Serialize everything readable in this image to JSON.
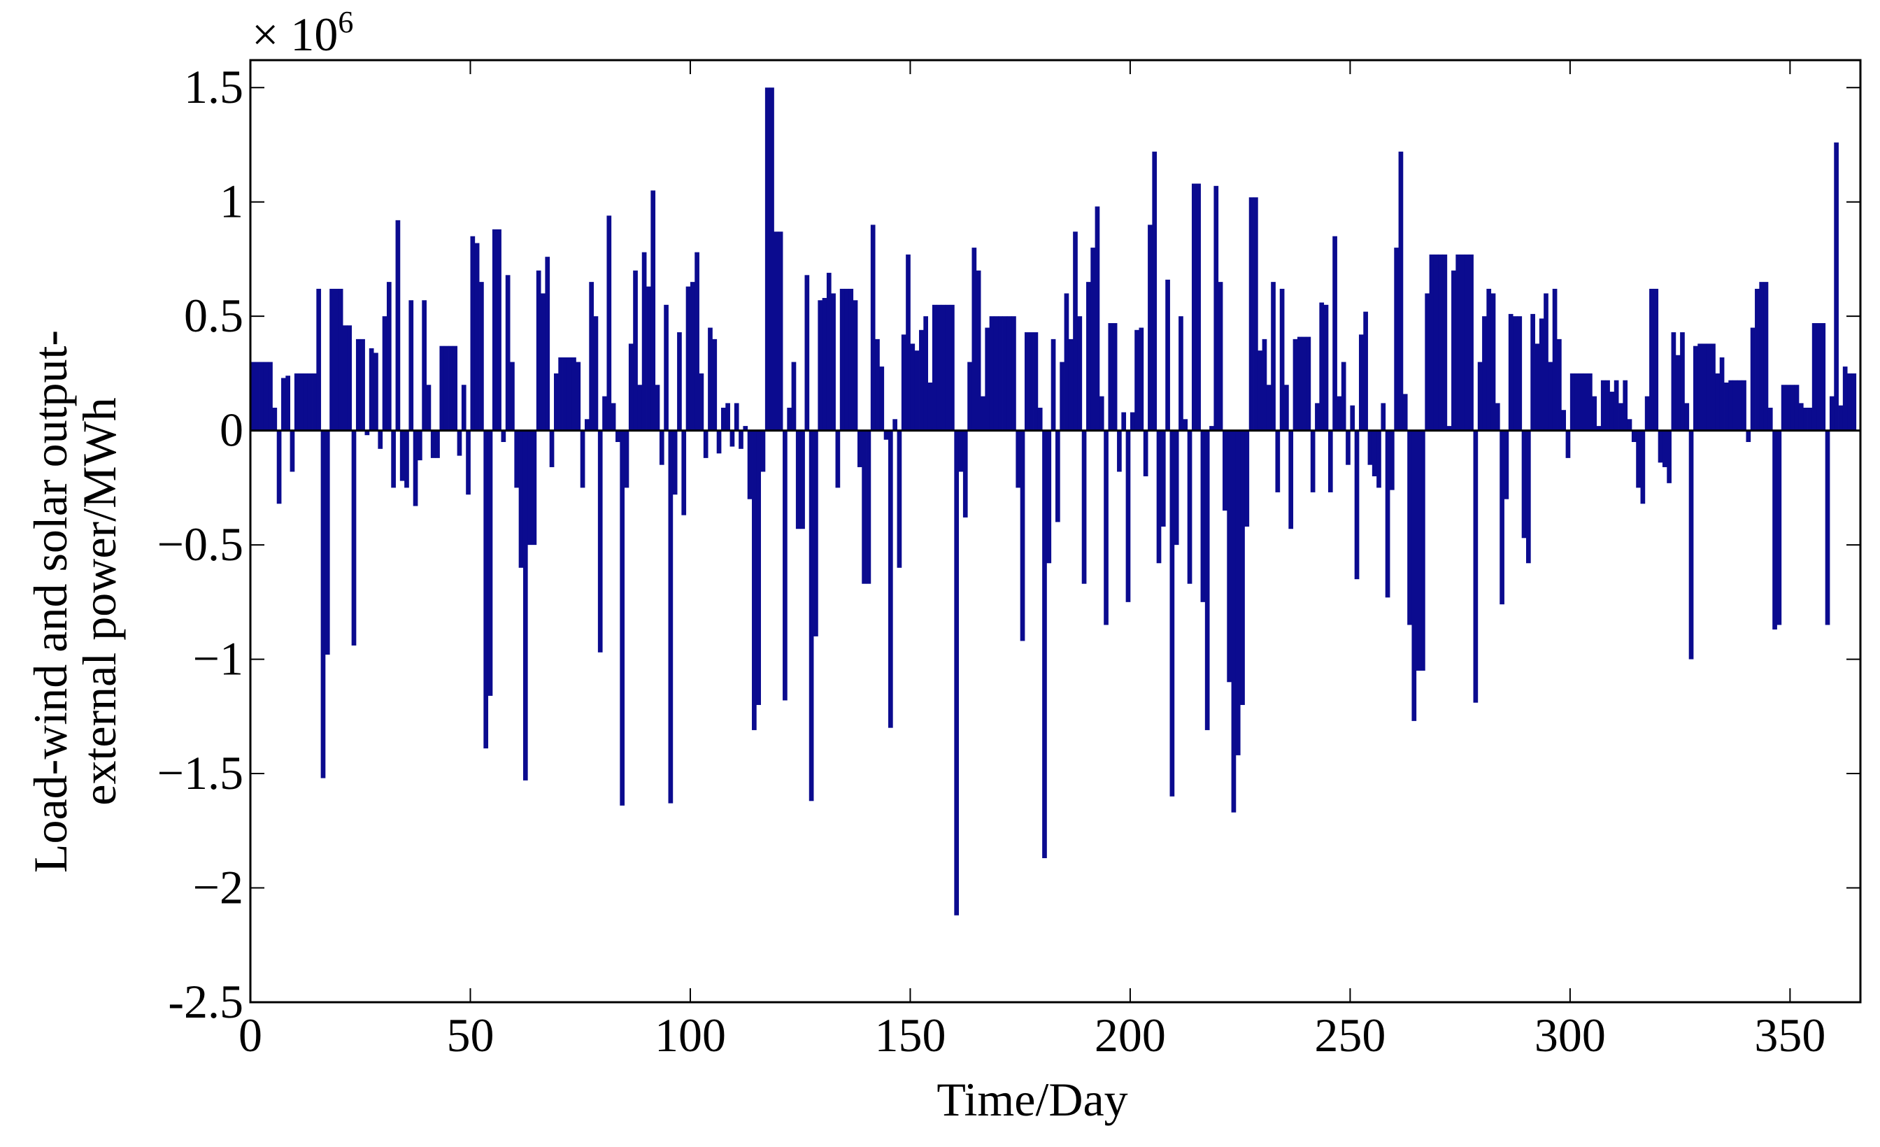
{
  "chart_data": {
    "type": "bar",
    "y_label_lines": [
      "Load-wind and solar output-",
      "external power/MWh"
    ],
    "x_label": "Time/Day",
    "y_multiplier": {
      "base": "× 10",
      "exponent": "6"
    },
    "color": "#0b0b8f",
    "xlim": [
      0,
      366
    ],
    "xticks": [
      0,
      50,
      100,
      150,
      200,
      250,
      300,
      350
    ],
    "ylim": [
      -2.5,
      1.62
    ],
    "yticks": [
      {
        "value": -2.5,
        "label": "-2.5"
      },
      {
        "value": -2,
        "label": "−2"
      },
      {
        "value": -1.5,
        "label": "−1.5"
      },
      {
        "value": -1,
        "label": "−1"
      },
      {
        "value": -0.5,
        "label": "−0.5"
      },
      0,
      0.5,
      1,
      1.5
    ],
    "x": [
      1,
      2,
      3,
      4,
      5,
      6,
      7,
      8,
      9,
      10,
      11,
      12,
      13,
      14,
      15,
      16,
      17,
      18,
      19,
      20,
      21,
      22,
      23,
      24,
      25,
      26,
      27,
      28,
      29,
      30,
      31,
      32,
      33,
      34,
      35,
      36,
      37,
      38,
      39,
      40,
      41,
      42,
      43,
      44,
      45,
      46,
      47,
      48,
      49,
      50,
      51,
      52,
      53,
      54,
      55,
      56,
      57,
      58,
      59,
      60,
      61,
      62,
      63,
      64,
      65,
      66,
      67,
      68,
      69,
      70,
      71,
      72,
      73,
      74,
      75,
      76,
      77,
      78,
      79,
      80,
      81,
      82,
      83,
      84,
      85,
      86,
      87,
      88,
      89,
      90,
      91,
      92,
      93,
      94,
      95,
      96,
      97,
      98,
      99,
      100,
      101,
      102,
      103,
      104,
      105,
      106,
      107,
      108,
      109,
      110,
      111,
      112,
      113,
      114,
      115,
      116,
      117,
      118,
      119,
      120,
      121,
      122,
      123,
      124,
      125,
      126,
      127,
      128,
      129,
      130,
      131,
      132,
      133,
      134,
      135,
      136,
      137,
      138,
      139,
      140,
      141,
      142,
      143,
      144,
      145,
      146,
      147,
      148,
      149,
      150,
      151,
      152,
      153,
      154,
      155,
      156,
      157,
      158,
      159,
      160,
      161,
      162,
      163,
      164,
      165,
      166,
      167,
      168,
      169,
      170,
      171,
      172,
      173,
      174,
      175,
      176,
      177,
      178,
      179,
      180,
      181,
      182,
      183,
      184,
      185,
      186,
      187,
      188,
      189,
      190,
      191,
      192,
      193,
      194,
      195,
      196,
      197,
      198,
      199,
      200,
      201,
      202,
      203,
      204,
      205,
      206,
      207,
      208,
      209,
      210,
      211,
      212,
      213,
      214,
      215,
      216,
      217,
      218,
      219,
      220,
      221,
      222,
      223,
      224,
      225,
      226,
      227,
      228,
      229,
      230,
      231,
      232,
      233,
      234,
      235,
      236,
      237,
      238,
      239,
      240,
      241,
      242,
      243,
      244,
      245,
      246,
      247,
      248,
      249,
      250,
      251,
      252,
      253,
      254,
      255,
      256,
      257,
      258,
      259,
      260,
      261,
      262,
      263,
      264,
      265,
      266,
      267,
      268,
      269,
      270,
      271,
      272,
      273,
      274,
      275,
      276,
      277,
      278,
      279,
      280,
      281,
      282,
      283,
      284,
      285,
      286,
      287,
      288,
      289,
      290,
      291,
      292,
      293,
      294,
      295,
      296,
      297,
      298,
      299,
      300,
      301,
      302,
      303,
      304,
      305,
      306,
      307,
      308,
      309,
      310,
      311,
      312,
      313,
      314,
      315,
      316,
      317,
      318,
      319,
      320,
      321,
      322,
      323,
      324,
      325,
      326,
      327,
      328,
      329,
      330,
      331,
      332,
      333,
      334,
      335,
      336,
      337,
      338,
      339,
      340,
      341,
      342,
      343,
      344,
      345,
      346,
      347,
      348,
      349,
      350,
      351,
      352,
      353,
      354,
      355,
      356,
      357,
      358,
      359,
      360,
      361,
      362,
      363,
      364,
      365
    ],
    "values": [
      0.3,
      0.3,
      0.3,
      0.3,
      0.3,
      0.1,
      -0.32,
      0.23,
      0.24,
      -0.18,
      0.25,
      0.25,
      0.25,
      0.25,
      0.25,
      0.62,
      -1.52,
      -0.98,
      0.62,
      0.62,
      0.62,
      0.46,
      0.46,
      -0.94,
      0.4,
      0.4,
      -0.02,
      0.36,
      0.34,
      -0.08,
      0.5,
      0.65,
      -0.25,
      0.92,
      -0.22,
      -0.25,
      0.57,
      -0.33,
      -0.13,
      0.57,
      0.2,
      -0.12,
      -0.12,
      0.37,
      0.37,
      0.37,
      0.37,
      -0.11,
      0.2,
      -0.28,
      0.85,
      0.82,
      0.65,
      -1.39,
      -1.16,
      0.88,
      0.88,
      -0.05,
      0.68,
      0.3,
      -0.25,
      -0.6,
      -1.53,
      -0.5,
      -0.5,
      0.7,
      0.6,
      0.76,
      -0.16,
      0.25,
      0.32,
      0.32,
      0.32,
      0.32,
      0.3,
      -0.25,
      0.05,
      0.65,
      0.5,
      -0.97,
      0.15,
      0.94,
      0.12,
      -0.05,
      -1.64,
      -0.25,
      0.38,
      0.7,
      0.2,
      0.78,
      0.63,
      1.05,
      0.2,
      -0.15,
      0.55,
      -1.63,
      -0.28,
      0.43,
      -0.37,
      0.63,
      0.65,
      0.78,
      0.25,
      -0.12,
      0.45,
      0.4,
      -0.1,
      0.1,
      0.12,
      -0.07,
      0.12,
      -0.08,
      0.02,
      -0.3,
      -1.31,
      -1.2,
      -0.18,
      1.5,
      1.5,
      0.87,
      0.87,
      -1.18,
      0.1,
      0.3,
      -0.43,
      -0.43,
      0.68,
      -1.62,
      -0.9,
      0.57,
      0.58,
      0.69,
      0.6,
      -0.25,
      0.62,
      0.62,
      0.62,
      0.57,
      -0.16,
      -0.67,
      -0.67,
      0.9,
      0.4,
      0.28,
      -0.04,
      -1.3,
      0.05,
      -0.6,
      0.42,
      0.77,
      0.38,
      0.35,
      0.44,
      0.5,
      0.21,
      0.55,
      0.55,
      0.55,
      0.55,
      0.55,
      -2.12,
      -0.18,
      -0.38,
      0.3,
      0.8,
      0.7,
      0.15,
      0.45,
      0.5,
      0.5,
      0.5,
      0.5,
      0.5,
      0.5,
      -0.25,
      -0.92,
      0.43,
      0.43,
      0.43,
      0.1,
      -1.87,
      -0.58,
      0.4,
      -0.4,
      0.3,
      0.6,
      0.4,
      0.87,
      0.5,
      -0.67,
      0.65,
      0.8,
      0.98,
      0.15,
      -0.85,
      0.47,
      0.47,
      -0.18,
      0.08,
      -0.75,
      0.08,
      0.44,
      0.45,
      -0.2,
      0.9,
      1.22,
      -0.58,
      -0.42,
      0.66,
      -1.6,
      -0.5,
      0.5,
      0.05,
      -0.67,
      1.08,
      1.08,
      -0.75,
      -1.31,
      0.02,
      1.07,
      0.65,
      -0.35,
      -1.1,
      -1.67,
      -1.42,
      -1.2,
      -0.42,
      1.02,
      1.02,
      0.35,
      0.4,
      0.2,
      0.65,
      -0.27,
      0.62,
      0.2,
      -0.43,
      0.4,
      0.41,
      0.41,
      0.41,
      -0.27,
      0.12,
      0.56,
      0.55,
      -0.27,
      0.85,
      0.15,
      0.3,
      -0.15,
      0.11,
      -0.65,
      0.42,
      0.52,
      -0.15,
      -0.2,
      -0.25,
      0.12,
      -0.73,
      -0.26,
      0.8,
      1.22,
      0.16,
      -0.85,
      -1.27,
      -1.05,
      -1.05,
      0.6,
      0.77,
      0.77,
      0.77,
      0.77,
      0.02,
      0.7,
      0.77,
      0.77,
      0.77,
      0.77,
      -1.19,
      0.3,
      0.5,
      0.62,
      0.6,
      0.12,
      -0.76,
      -0.3,
      0.51,
      0.5,
      0.5,
      -0.47,
      -0.58,
      0.51,
      0.38,
      0.49,
      0.6,
      0.3,
      0.62,
      0.4,
      0.09,
      -0.12,
      0.25,
      0.25,
      0.25,
      0.25,
      0.25,
      0.15,
      0.02,
      0.22,
      0.22,
      0.17,
      0.22,
      0.12,
      0.22,
      0.05,
      -0.05,
      -0.25,
      -0.32,
      0.15,
      0.62,
      0.62,
      -0.14,
      -0.16,
      -0.23,
      0.43,
      0.33,
      0.43,
      0.12,
      -1,
      0.37,
      0.38,
      0.38,
      0.38,
      0.38,
      0.25,
      0.32,
      0.21,
      0.22,
      0.22,
      0.22,
      0.22,
      -0.05,
      0.45,
      0.62,
      0.65,
      0.65,
      0.1,
      -0.87,
      -0.85,
      0.2,
      0.2,
      0.2,
      0.2,
      0.12,
      0.1,
      0.1,
      0.47,
      0.47,
      0.47,
      -0.85,
      0.15,
      1.26,
      0.11,
      0.28,
      0.25,
      0.25
    ]
  }
}
